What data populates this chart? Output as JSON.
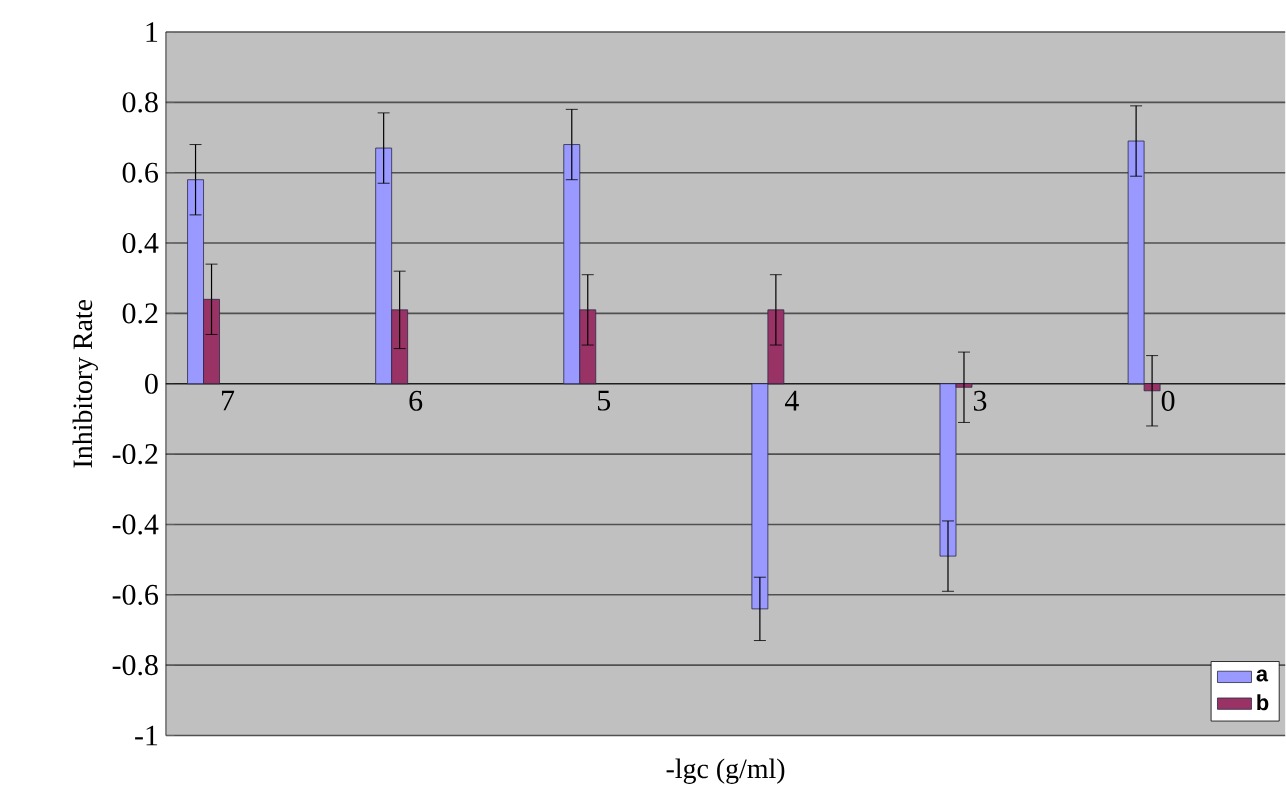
{
  "chart_data": {
    "type": "bar",
    "xlabel": "-lgc (g/ml)",
    "ylabel": "Inhibitory Rate",
    "categories": [
      "7",
      "6",
      "5",
      "4",
      "3",
      "0"
    ],
    "series": [
      {
        "name": "a",
        "color": "#9999ff",
        "values": [
          0.58,
          0.67,
          0.68,
          -0.64,
          -0.49,
          0.69
        ],
        "errors": [
          0.1,
          0.1,
          0.1,
          0.09,
          0.1,
          0.1
        ]
      },
      {
        "name": "b",
        "color": "#993366",
        "values": [
          0.24,
          0.21,
          0.21,
          0.21,
          -0.01,
          -0.02
        ],
        "errors": [
          0.1,
          0.11,
          0.1,
          0.1,
          0.1,
          0.1
        ]
      }
    ],
    "ylim": [
      -1,
      1
    ],
    "yticks": [
      -1,
      -0.8,
      -0.6,
      -0.4,
      -0.2,
      0,
      0.2,
      0.4,
      0.6,
      0.8,
      1
    ],
    "grid": "y",
    "legend": "bottom right"
  }
}
